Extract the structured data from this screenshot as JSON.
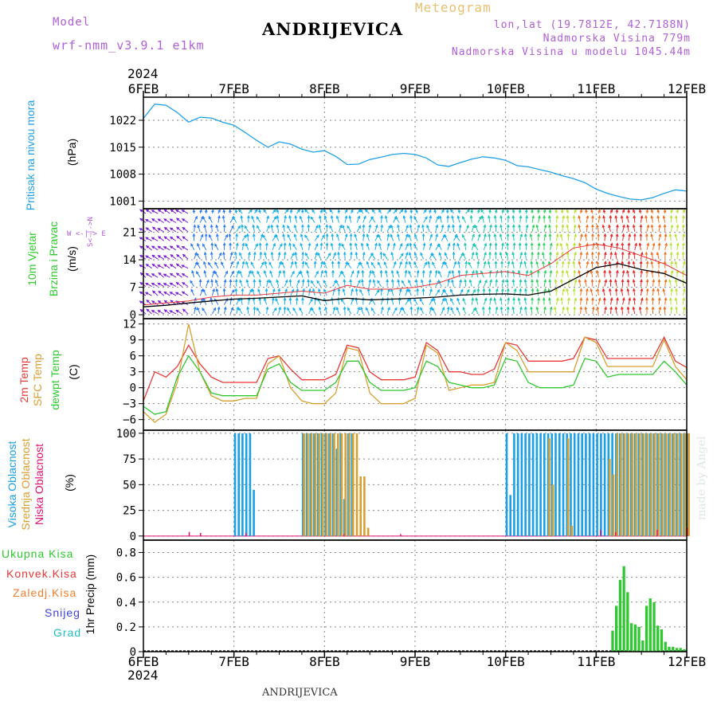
{
  "header": {
    "model_label": "Model",
    "model_name": "wrf-nmm_v3.9.1 e1km",
    "station": "ANDRIJEVICA",
    "meteogram": "Meteogram",
    "lonlat": "lon,lat (19.7812E, 42.7188N)",
    "altitude": "Nadmorska Visina 779m",
    "model_altitude": "Nadmorska Visina u modelu 1045.44m",
    "year_top": "2024",
    "year_bottom": "2024",
    "footer": "ANDRIJEVICA",
    "watermark": "made by Angel"
  },
  "dates": [
    "6FEB",
    "7FEB",
    "8FEB",
    "9FEB",
    "10FEB",
    "11FEB",
    "12FEB"
  ],
  "panels": {
    "pressure": {
      "label1": "Pritisak na nivou mora",
      "unit": "(hPa)"
    },
    "wind": {
      "label1": "10m Vjetar",
      "label2": "Brzina i Pravac",
      "unit": "(m/s)",
      "compass": "W <-|-> E",
      "compass_v": "S<-|->N"
    },
    "temp": {
      "label1": "2m Temp",
      "label2": "SFC Temp",
      "label3": "dewpt Temp",
      "unit": "(C)"
    },
    "cloud": {
      "label1": "Visoka Oblacnost",
      "label2": "Srednja Oblacnost",
      "label3": "Niska Oblacnost",
      "unit": "(%)"
    },
    "precip": {
      "items": [
        "Ukupna Kisa",
        "Konvek.Kisa",
        "Zaledj.Kisa",
        "Snijeg",
        "Grad"
      ],
      "unit": "1hr Precip (mm)"
    }
  },
  "colors": {
    "pressure": "#20a0e8",
    "t2m": "#e83838",
    "tsfc": "#d8a030",
    "dewpt": "#30c830",
    "high_cloud": "#1aa0e8",
    "mid_cloud": "#d8a030",
    "low_cloud": "#e01070",
    "precip": "#30c830",
    "conv": "#e83838",
    "frz": "#f08030",
    "snow": "#4040e0",
    "hail": "#20c0c0",
    "wind_speed": "#000000",
    "gust": "#e83838"
  },
  "chart_data": [
    {
      "type": "line",
      "id": "pressure",
      "ylabel": "(hPa)",
      "ylim": [
        999,
        1028
      ],
      "yticks": [
        1001,
        1008,
        1015,
        1022
      ],
      "x_unit": "hours since 6FEB 00UTC",
      "x": [
        0,
        3,
        6,
        9,
        12,
        15,
        18,
        21,
        24,
        27,
        30,
        33,
        36,
        39,
        42,
        45,
        48,
        51,
        54,
        57,
        60,
        63,
        66,
        69,
        72,
        75,
        78,
        81,
        84,
        87,
        90,
        93,
        96,
        99,
        102,
        105,
        108,
        111,
        114,
        117,
        120,
        123,
        126,
        129,
        132,
        135,
        138,
        141,
        144
      ],
      "values": [
        1022.5,
        1026.2,
        1025.9,
        1024.0,
        1021.5,
        1022.8,
        1022.6,
        1021.5,
        1020.7,
        1018.8,
        1016.8,
        1015.0,
        1016.4,
        1015.8,
        1014.5,
        1013.7,
        1014.1,
        1012.6,
        1010.5,
        1010.6,
        1011.8,
        1012.4,
        1013.1,
        1013.4,
        1013.1,
        1012.2,
        1010.4,
        1010.0,
        1011.0,
        1011.9,
        1012.5,
        1012.2,
        1011.6,
        1010.2,
        1009.9,
        1009.2,
        1008.5,
        1007.6,
        1006.8,
        1005.8,
        1004.1,
        1003.0,
        1002.2,
        1001.5,
        1001.3,
        1001.9,
        1003.0,
        1003.9,
        1003.6
      ]
    },
    {
      "type": "line",
      "id": "wind",
      "ylabel": "(m/s)",
      "ylim": [
        -1,
        27
      ],
      "yticks": [
        0,
        7,
        14,
        21
      ],
      "x_unit": "hours since 6FEB 00UTC",
      "x": [
        0,
        6,
        12,
        18,
        24,
        30,
        36,
        42,
        48,
        54,
        60,
        66,
        72,
        78,
        84,
        90,
        96,
        102,
        108,
        114,
        120,
        126,
        132,
        138,
        144
      ],
      "series": [
        {
          "id": "speed",
          "values": [
            2.0,
            2.4,
            3.0,
            3.5,
            4.0,
            4.2,
            4.5,
            4.8,
            3.6,
            4.2,
            3.8,
            4.0,
            4.2,
            4.5,
            5.0,
            5.2,
            5.3,
            5.0,
            6.0,
            9.0,
            12.0,
            13.0,
            11.5,
            10.5,
            8.0
          ]
        },
        {
          "id": "gust",
          "values": [
            2.5,
            3.0,
            3.5,
            4.5,
            5.0,
            5.0,
            5.5,
            6.0,
            5.5,
            7.5,
            6.5,
            6.5,
            7.0,
            8.0,
            10.0,
            10.5,
            11.0,
            10.0,
            13.0,
            17.0,
            18.0,
            17.0,
            15.0,
            13.0,
            10.0
          ]
        }
      ],
      "arrows_speed_bins": [
        0,
        6,
        12,
        18,
        24,
        30,
        36,
        42,
        48,
        54,
        60,
        66,
        72,
        78,
        84,
        90,
        96,
        102,
        108,
        114,
        120,
        126,
        132,
        138
      ],
      "arrows_speed": [
        3,
        3,
        4,
        5,
        6,
        6,
        6,
        6,
        7,
        7,
        7,
        6,
        6,
        7,
        8,
        9,
        9,
        10,
        12,
        16,
        19,
        19,
        16,
        13
      ]
    },
    {
      "type": "line",
      "id": "temperature",
      "ylabel": "(C)",
      "ylim": [
        -8,
        13
      ],
      "yticks": [
        -6,
        -3,
        0,
        3,
        6,
        9,
        12
      ],
      "x_unit": "hours since 6FEB 00UTC",
      "x": [
        0,
        3,
        6,
        9,
        12,
        15,
        18,
        21,
        24,
        27,
        30,
        33,
        36,
        39,
        42,
        45,
        48,
        51,
        54,
        57,
        60,
        63,
        66,
        69,
        72,
        75,
        78,
        81,
        84,
        87,
        90,
        93,
        96,
        99,
        102,
        105,
        108,
        111,
        114,
        117,
        120,
        123,
        126,
        129,
        132,
        135,
        138,
        141,
        144
      ],
      "series": [
        {
          "id": "t2m",
          "name": "2m Temp",
          "values": [
            -2.5,
            3.0,
            2.0,
            4.0,
            8.0,
            4.5,
            2.0,
            1.0,
            1.0,
            1.0,
            1.0,
            5.5,
            6.0,
            3.5,
            1.5,
            1.5,
            1.5,
            2.5,
            8.0,
            7.5,
            3.0,
            1.5,
            1.5,
            1.5,
            2.0,
            8.5,
            7.0,
            3.0,
            3.0,
            2.5,
            2.5,
            3.5,
            8.5,
            8.0,
            5.0,
            5.0,
            5.0,
            5.0,
            5.5,
            9.5,
            9.0,
            5.5,
            5.5,
            5.5,
            5.5,
            5.5,
            9.5,
            5.0,
            3.8
          ]
        },
        {
          "id": "tsfc",
          "name": "SFC Temp",
          "values": [
            -4.5,
            -6.5,
            -5.0,
            1.0,
            12.0,
            3.0,
            -1.5,
            -2.5,
            -2.5,
            -2.0,
            -2.0,
            4.5,
            6.0,
            0.0,
            -2.5,
            -3.0,
            -3.0,
            -1.0,
            7.5,
            7.0,
            -1.0,
            -3.0,
            -3.0,
            -3.0,
            -2.0,
            8.0,
            6.5,
            -0.5,
            0.0,
            0.5,
            0.5,
            1.0,
            8.5,
            7.0,
            3.0,
            3.0,
            3.0,
            3.0,
            3.0,
            9.5,
            8.5,
            4.0,
            4.0,
            4.0,
            4.0,
            4.0,
            9.0,
            4.0,
            1.5
          ]
        },
        {
          "id": "dewpt",
          "name": "dewpt Temp",
          "values": [
            -3.5,
            -5.0,
            -4.5,
            2.0,
            6.0,
            3.0,
            -1.0,
            -1.5,
            -1.5,
            -1.5,
            -1.5,
            3.5,
            4.5,
            1.0,
            -0.5,
            -0.5,
            -0.5,
            1.0,
            5.0,
            5.0,
            1.0,
            -0.5,
            -0.5,
            -0.5,
            0.0,
            5.0,
            4.0,
            1.0,
            0.5,
            0.0,
            0.0,
            0.5,
            5.5,
            5.0,
            1.0,
            0.0,
            0.0,
            0.0,
            0.5,
            5.5,
            5.0,
            2.0,
            2.5,
            2.5,
            2.5,
            2.5,
            5.0,
            3.0,
            0.5
          ]
        }
      ]
    },
    {
      "type": "bar",
      "id": "cloud",
      "ylabel": "(%)",
      "ylim": [
        -4,
        103
      ],
      "yticks": [
        0,
        25,
        50,
        75,
        100
      ],
      "x_unit": "hours since 6FEB 00UTC",
      "series": [
        {
          "id": "high",
          "name": "Visoka Oblacnost",
          "points": [
            [
              24,
              100
            ],
            [
              25,
              100
            ],
            [
              26,
              100
            ],
            [
              27,
              100
            ],
            [
              28,
              100
            ],
            [
              29,
              45
            ],
            [
              42,
              100
            ],
            [
              43,
              100
            ],
            [
              44,
              100
            ],
            [
              45,
              100
            ],
            [
              46,
              100
            ],
            [
              47,
              100
            ],
            [
              48,
              100
            ],
            [
              49,
              100
            ],
            [
              50,
              100
            ],
            [
              51,
              85
            ],
            [
              52,
              100
            ],
            [
              53,
              36
            ],
            [
              54,
              100
            ],
            [
              55,
              100
            ],
            [
              96,
              100
            ],
            [
              97,
              40
            ],
            [
              98,
              100
            ],
            [
              99,
              100
            ],
            [
              100,
              100
            ],
            [
              101,
              100
            ],
            [
              102,
              100
            ],
            [
              103,
              100
            ],
            [
              104,
              100
            ],
            [
              105,
              100
            ],
            [
              106,
              100
            ],
            [
              107,
              100
            ],
            [
              108,
              100
            ],
            [
              109,
              100
            ],
            [
              110,
              100
            ],
            [
              111,
              100
            ],
            [
              112,
              100
            ],
            [
              113,
              100
            ],
            [
              114,
              100
            ],
            [
              115,
              100
            ],
            [
              116,
              100
            ],
            [
              117,
              100
            ],
            [
              118,
              100
            ],
            [
              119,
              100
            ],
            [
              120,
              100
            ],
            [
              121,
              100
            ],
            [
              122,
              100
            ],
            [
              123,
              100
            ],
            [
              124,
              100
            ],
            [
              125,
              100
            ],
            [
              126,
              100
            ],
            [
              127,
              100
            ],
            [
              128,
              100
            ],
            [
              129,
              100
            ],
            [
              130,
              100
            ],
            [
              131,
              100
            ],
            [
              132,
              100
            ],
            [
              133,
              100
            ],
            [
              134,
              100
            ],
            [
              135,
              100
            ],
            [
              136,
              100
            ],
            [
              137,
              100
            ],
            [
              138,
              100
            ],
            [
              139,
              100
            ],
            [
              140,
              100
            ],
            [
              141,
              100
            ],
            [
              142,
              100
            ],
            [
              143,
              100
            ],
            [
              144,
              100
            ]
          ]
        },
        {
          "id": "mid",
          "name": "Srednja Oblacnost",
          "points": [
            [
              42,
              100
            ],
            [
              43,
              100
            ],
            [
              44,
              100
            ],
            [
              45,
              100
            ],
            [
              46,
              100
            ],
            [
              47,
              100
            ],
            [
              48,
              100
            ],
            [
              49,
              100
            ],
            [
              50,
              100
            ],
            [
              51,
              100
            ],
            [
              52,
              100
            ],
            [
              53,
              100
            ],
            [
              54,
              100
            ],
            [
              55,
              100
            ],
            [
              56,
              100
            ],
            [
              57,
              58
            ],
            [
              58,
              58
            ],
            [
              59,
              8
            ],
            [
              107,
              95
            ],
            [
              108,
              50
            ],
            [
              112,
              95
            ],
            [
              113,
              10
            ],
            [
              123,
              75
            ],
            [
              124,
              60
            ],
            [
              125,
              100
            ],
            [
              126,
              100
            ],
            [
              127,
              100
            ],
            [
              128,
              100
            ],
            [
              129,
              100
            ],
            [
              130,
              100
            ],
            [
              131,
              100
            ],
            [
              132,
              100
            ],
            [
              133,
              100
            ],
            [
              134,
              100
            ],
            [
              135,
              100
            ],
            [
              136,
              100
            ],
            [
              137,
              100
            ],
            [
              138,
              100
            ],
            [
              139,
              100
            ],
            [
              140,
              100
            ],
            [
              141,
              100
            ],
            [
              142,
              100
            ],
            [
              143,
              100
            ],
            [
              144,
              100
            ]
          ]
        },
        {
          "id": "low",
          "name": "Niska Oblacnost",
          "points": [
            [
              12,
              4
            ],
            [
              15,
              3
            ],
            [
              27,
              3
            ],
            [
              53,
              2
            ],
            [
              68,
              2
            ],
            [
              121,
              6
            ],
            [
              125,
              4
            ],
            [
              136,
              6
            ],
            [
              144,
              8
            ]
          ]
        }
      ]
    },
    {
      "type": "bar",
      "id": "precip",
      "ylabel": "1hr Precip (mm)",
      "ylim": [
        0,
        0.9
      ],
      "yticks": [
        0,
        0.2,
        0.4,
        0.6,
        0.8
      ],
      "x_unit": "hours since 6FEB 00UTC",
      "series": [
        {
          "id": "total",
          "name": "Ukupna Kisa",
          "points": [
            [
              124,
              0.17
            ],
            [
              125,
              0.37
            ],
            [
              126,
              0.58
            ],
            [
              127,
              0.69
            ],
            [
              128,
              0.48
            ],
            [
              129,
              0.23
            ],
            [
              130,
              0.22
            ],
            [
              131,
              0.2
            ],
            [
              132,
              0.09
            ],
            [
              133,
              0.37
            ],
            [
              134,
              0.43
            ],
            [
              135,
              0.4
            ],
            [
              136,
              0.21
            ],
            [
              137,
              0.18
            ],
            [
              138,
              0.08
            ],
            [
              139,
              0.04
            ],
            [
              140,
              0.04
            ],
            [
              141,
              0.03
            ],
            [
              142,
              0.03
            ],
            [
              143,
              0.02
            ]
          ]
        }
      ]
    }
  ]
}
